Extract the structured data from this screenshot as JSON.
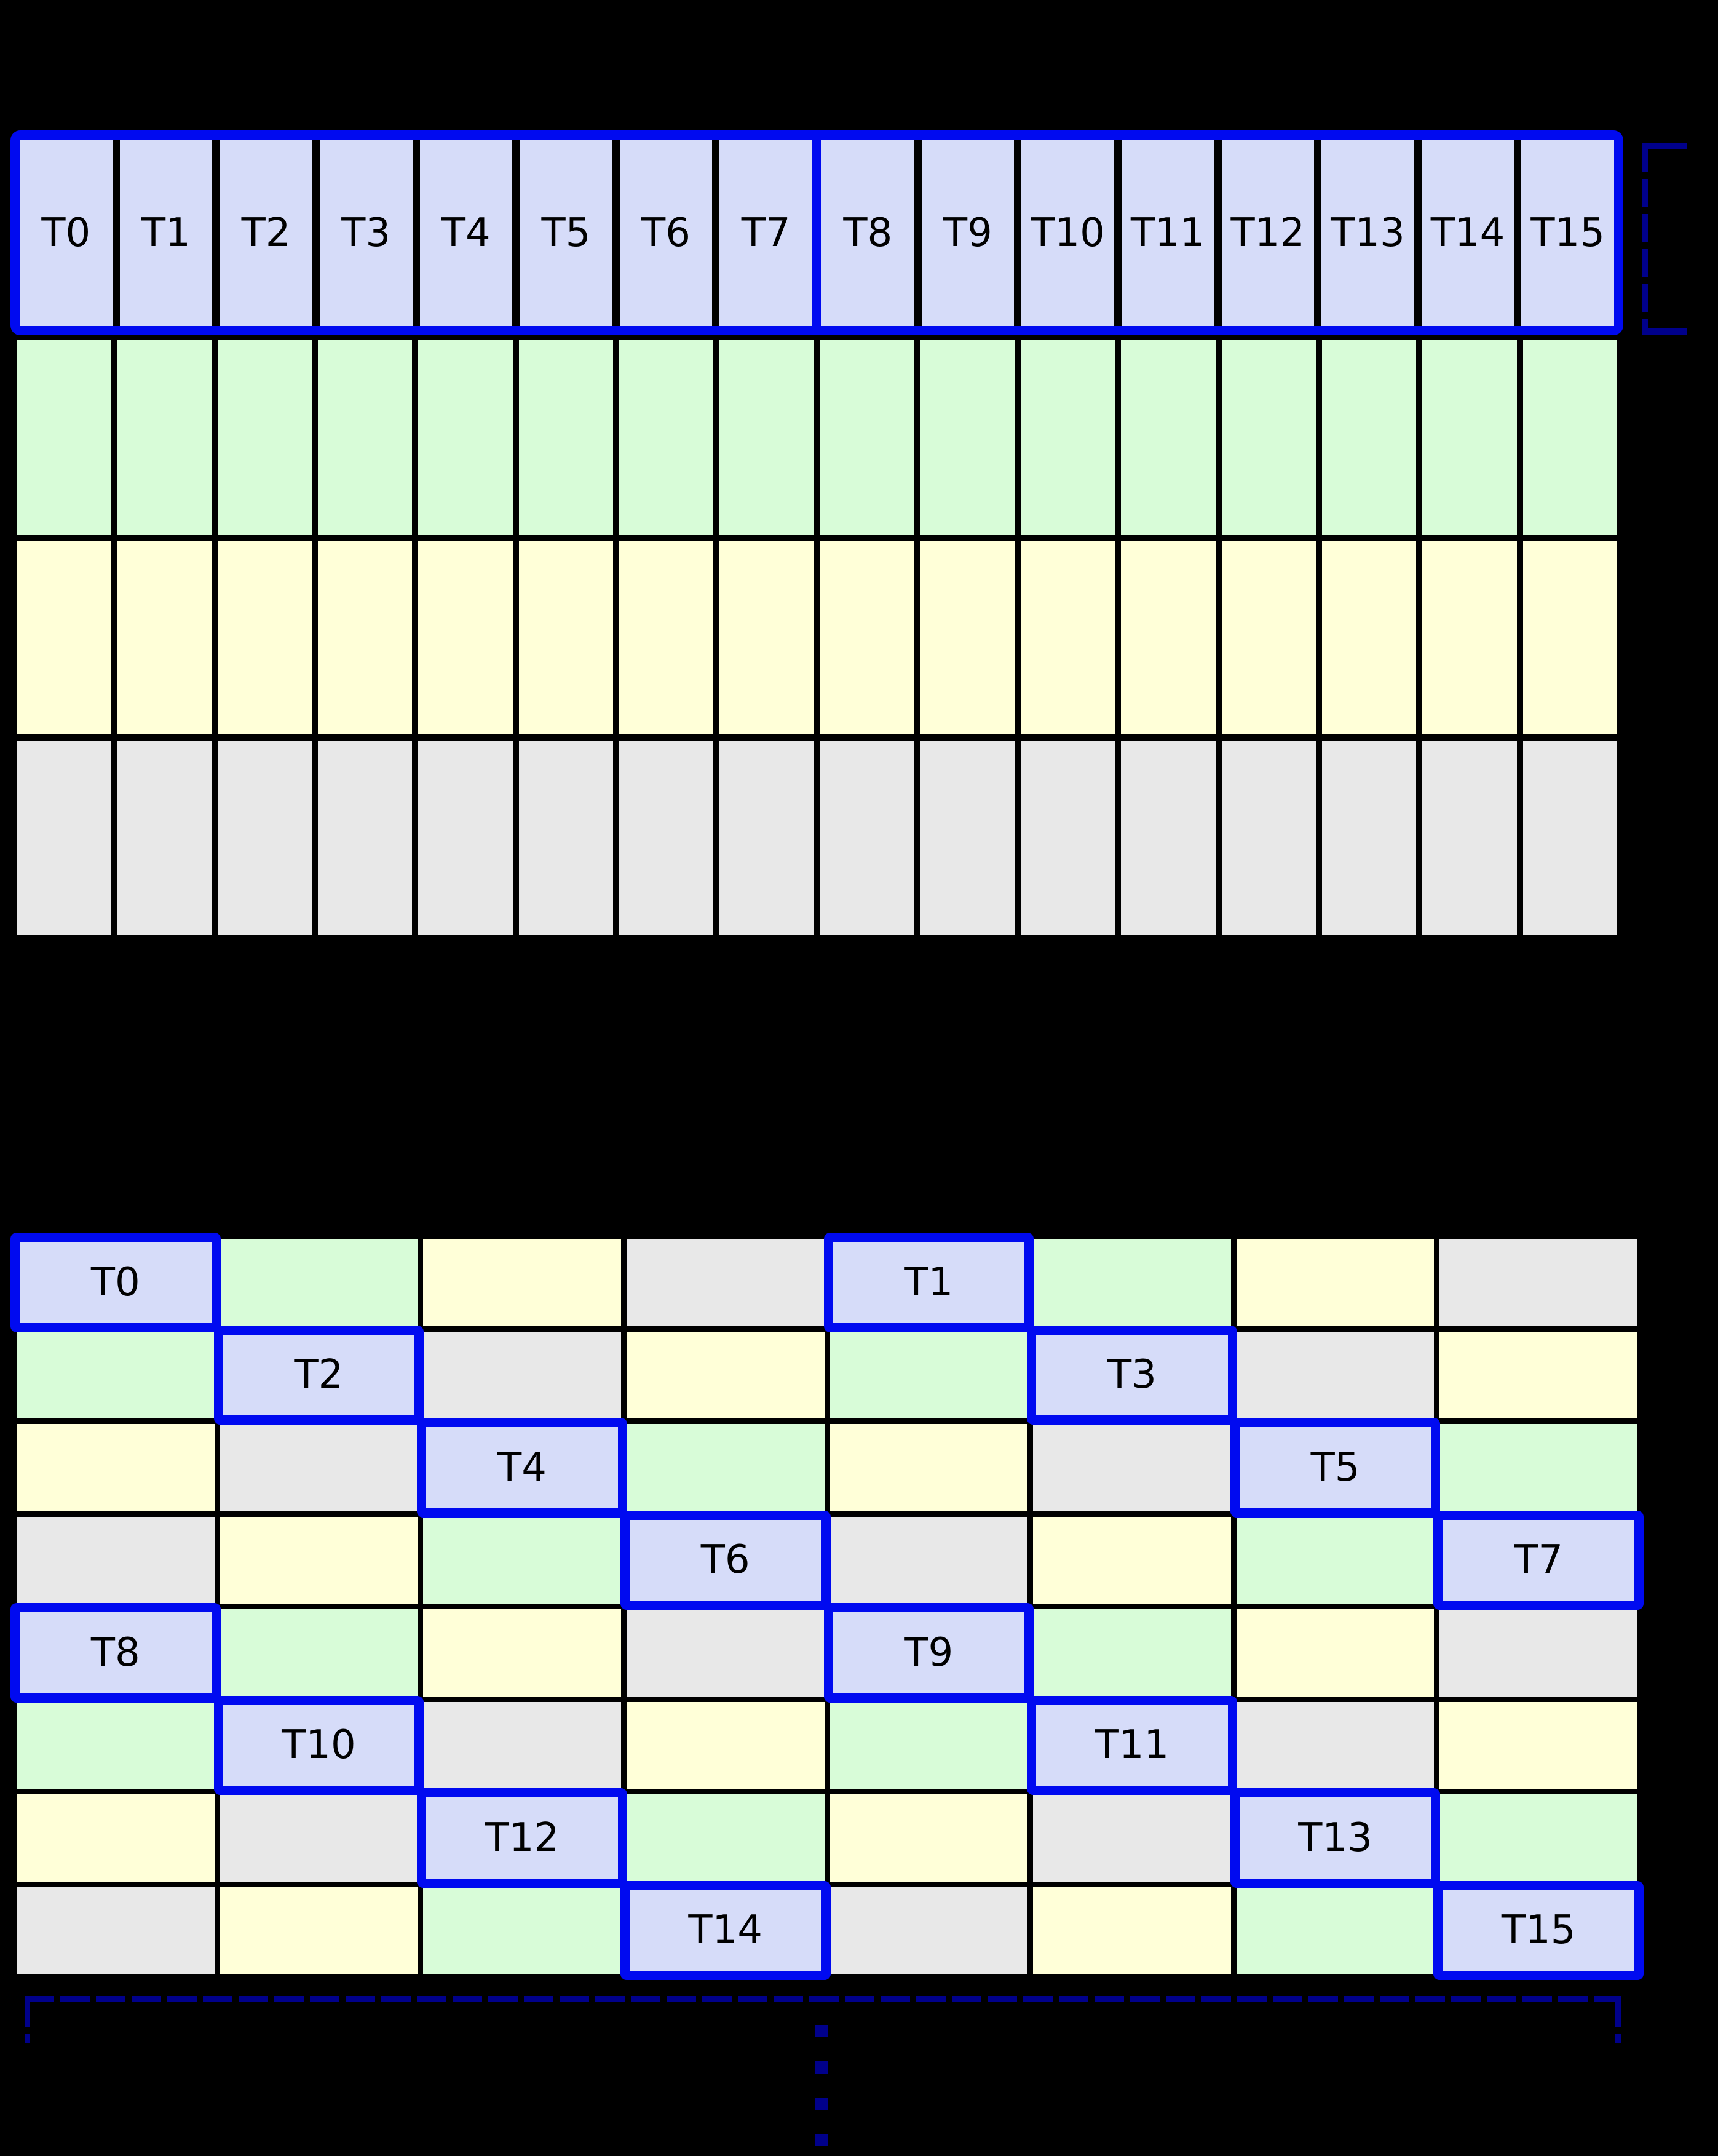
{
  "background": "#000000",
  "colors": {
    "lavender": "#d6dcf9",
    "green": "#d8fcd8",
    "yellow": "#ffffd8",
    "gray": "#e8e8e8",
    "highlight_blue": "#000af0",
    "bracket_navy": "#00008b",
    "grid_line": "#000000",
    "label_text": "#000000"
  },
  "top_grid": {
    "thread_labels": [
      "T0",
      "T1",
      "T2",
      "T3",
      "T4",
      "T5",
      "T6",
      "T7",
      "T8",
      "T9",
      "T10",
      "T11",
      "T12",
      "T13",
      "T14",
      "T15"
    ],
    "half_warp_size": 8,
    "memory_row_colors": [
      "green",
      "yellow",
      "gray"
    ]
  },
  "bottom_grid": {
    "rows": 8,
    "cols": 8,
    "color_cycle": [
      "lavender",
      "green",
      "yellow",
      "gray"
    ],
    "color_rule": "color_index = (row mod 4) XOR (col mod 4)",
    "accessed_cells": [
      {
        "label": "T0",
        "row": 0,
        "col": 0
      },
      {
        "label": "T1",
        "row": 0,
        "col": 4
      },
      {
        "label": "T2",
        "row": 1,
        "col": 1
      },
      {
        "label": "T3",
        "row": 1,
        "col": 5
      },
      {
        "label": "T4",
        "row": 2,
        "col": 2
      },
      {
        "label": "T5",
        "row": 2,
        "col": 6
      },
      {
        "label": "T6",
        "row": 3,
        "col": 3
      },
      {
        "label": "T7",
        "row": 3,
        "col": 7
      },
      {
        "label": "T8",
        "row": 4,
        "col": 0
      },
      {
        "label": "T9",
        "row": 4,
        "col": 4
      },
      {
        "label": "T10",
        "row": 5,
        "col": 1
      },
      {
        "label": "T11",
        "row": 5,
        "col": 5
      },
      {
        "label": "T12",
        "row": 6,
        "col": 2
      },
      {
        "label": "T13",
        "row": 6,
        "col": 6
      },
      {
        "label": "T14",
        "row": 7,
        "col": 3
      },
      {
        "label": "T15",
        "row": 7,
        "col": 7
      }
    ]
  },
  "annotations": {
    "top_right_bracket": {
      "style": "dashed",
      "color": "#00008b"
    },
    "bottom_bracket": {
      "style": "dashed",
      "color": "#00008b"
    },
    "ellipsis_dot_count": 4
  }
}
